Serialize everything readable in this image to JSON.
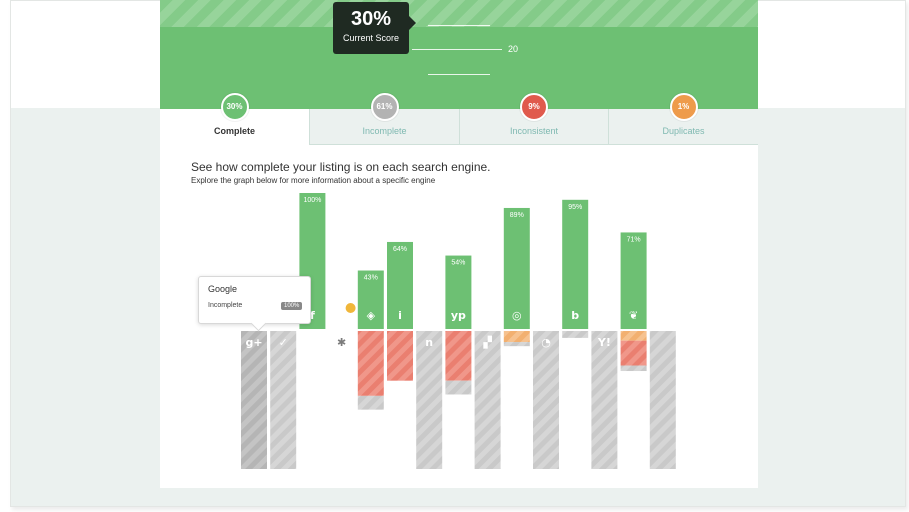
{
  "header": {
    "score_value": "30%",
    "score_label": "Current Score",
    "scale_label": "20"
  },
  "tabs": [
    {
      "label": "Complete",
      "badge": "30%",
      "color": "#6dc073",
      "active": true
    },
    {
      "label": "Incomplete",
      "badge": "61%",
      "color": "#b3b3b3",
      "active": false
    },
    {
      "label": "Inconsistent",
      "badge": "9%",
      "color": "#e05a4d",
      "active": false
    },
    {
      "label": "Duplicates",
      "badge": "1%",
      "color": "#ee9b4b",
      "active": false
    }
  ],
  "chart_data": {
    "type": "bar",
    "title": "See how complete your listing is on each search engine.",
    "subtitle": "Explore the graph below for more information about a specific engine",
    "colors": {
      "complete": "#6dc073",
      "inconsistent": "#ec8878",
      "duplicates": "#f3b77a",
      "incomplete": "#cccccc"
    },
    "engines": [
      {
        "icon": "google-plus-icon",
        "glyph": "g+",
        "complete": 0,
        "complete_label": "",
        "inconsistent": 0,
        "duplicates": 0,
        "incomplete": 100,
        "selected": true
      },
      {
        "icon": "foursquare-icon",
        "glyph": "✓",
        "complete": 0,
        "complete_label": "",
        "inconsistent": 0,
        "duplicates": 0,
        "incomplete": 100
      },
      {
        "icon": "facebook-icon",
        "glyph": "f",
        "complete": 100,
        "complete_label": "100%",
        "inconsistent": 0,
        "duplicates": 0,
        "incomplete": 0
      },
      {
        "icon": "yelp-icon",
        "glyph": "✱",
        "complete": 0,
        "complete_label": "",
        "inconsistent": 0,
        "duplicates": 0,
        "incomplete": 0,
        "badge": true
      },
      {
        "icon": "mapquest-icon",
        "glyph": "◈",
        "complete": 43,
        "complete_label": "43%",
        "inconsistent": 47,
        "duplicates": 0,
        "incomplete": 10
      },
      {
        "icon": "citysearch-icon",
        "glyph": "i",
        "complete": 64,
        "complete_label": "64%",
        "inconsistent": 36,
        "duplicates": 0,
        "incomplete": 0
      },
      {
        "icon": "nearby-icon",
        "glyph": "n",
        "complete": 0,
        "complete_label": "",
        "inconsistent": 0,
        "duplicates": 0,
        "incomplete": 100
      },
      {
        "icon": "yellowpages-icon",
        "glyph": "yp",
        "complete": 54,
        "complete_label": "54%",
        "inconsistent": 36,
        "duplicates": 0,
        "incomplete": 10
      },
      {
        "icon": "manta-icon",
        "glyph": "▞",
        "complete": 0,
        "complete_label": "",
        "inconsistent": 0,
        "duplicates": 0,
        "incomplete": 100
      },
      {
        "icon": "superpages-icon",
        "glyph": "◎",
        "complete": 89,
        "complete_label": "89%",
        "inconsistent": 0,
        "duplicates": 8,
        "incomplete": 3
      },
      {
        "icon": "local-icon",
        "glyph": "◔",
        "complete": 0,
        "complete_label": "",
        "inconsistent": 0,
        "duplicates": 0,
        "incomplete": 100
      },
      {
        "icon": "bing-icon",
        "glyph": "b",
        "complete": 95,
        "complete_label": "95%",
        "inconsistent": 0,
        "duplicates": 0,
        "incomplete": 5
      },
      {
        "icon": "yahoo-icon",
        "glyph": "Y!",
        "complete": 0,
        "complete_label": "",
        "inconsistent": 0,
        "duplicates": 0,
        "incomplete": 100
      },
      {
        "icon": "hotfrog-icon",
        "glyph": "❦",
        "complete": 71,
        "complete_label": "71%",
        "inconsistent": 18,
        "duplicates": 7,
        "incomplete": 4
      },
      {
        "icon": "other-engine-icon",
        "glyph": "",
        "complete": 0,
        "complete_label": "",
        "inconsistent": 0,
        "duplicates": 0,
        "incomplete": 100
      }
    ]
  },
  "tooltip": {
    "engine": "Google",
    "status": "Incomplete",
    "value": "100%"
  }
}
